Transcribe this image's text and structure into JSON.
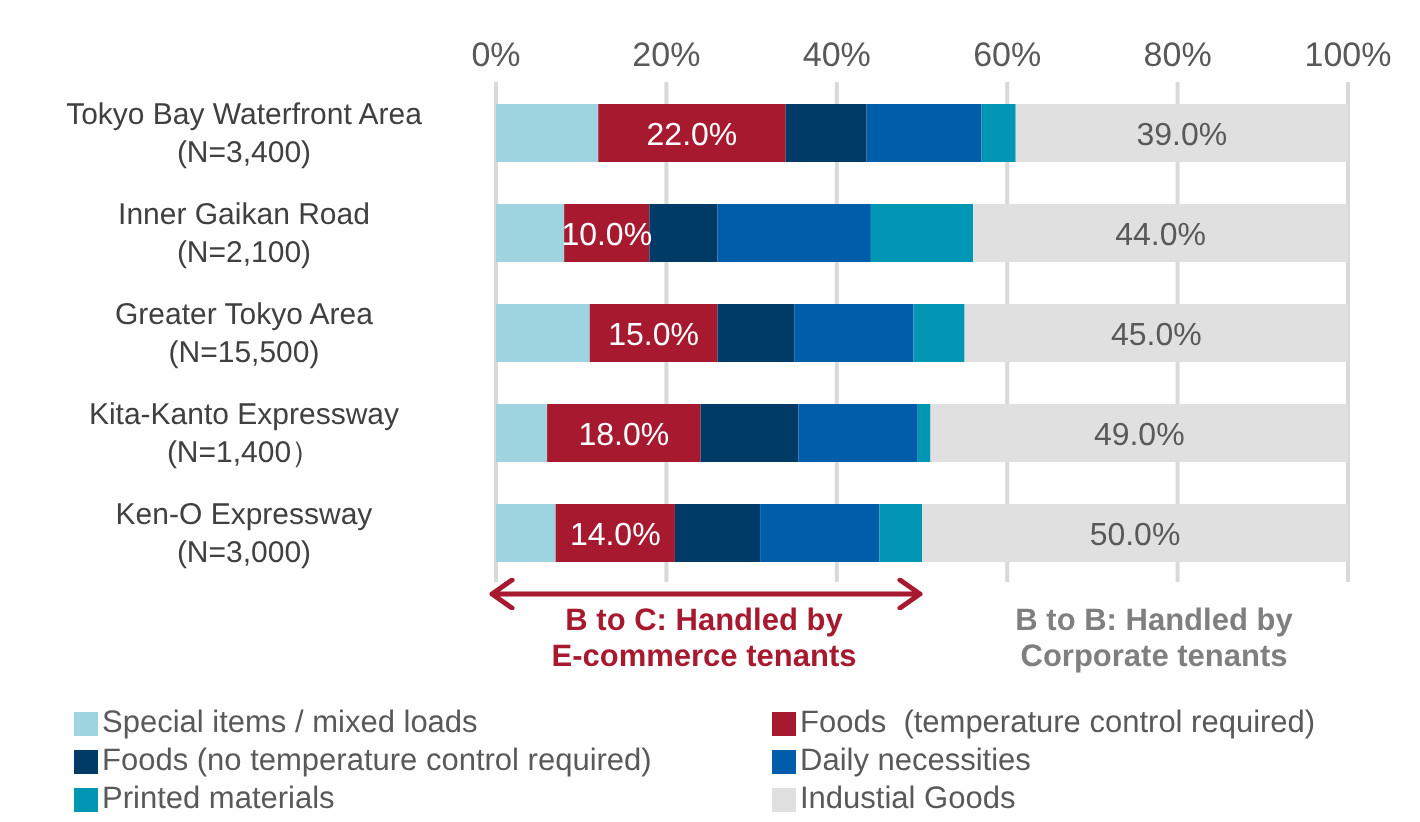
{
  "chart_data": {
    "type": "bar",
    "orientation": "horizontal",
    "stacked": true,
    "categories": [
      "Tokyo Bay Waterfront Area\n(N=3,400)",
      "Inner Gaikan Road\n(N=2,100)",
      "Greater Tokyo Area\n(N=15,500)",
      "Kita-Kanto Expressway\n(N=1,400）",
      "Ken-O Expressway\n(N=3,000)"
    ],
    "series": [
      {
        "name": "Special items / mixed loads",
        "color": "#9dd4df",
        "values": [
          12,
          8,
          11,
          6,
          7
        ]
      },
      {
        "name": "Foods  (temperature control required)",
        "color": "#a6192e",
        "values": [
          22,
          10,
          15,
          18,
          14
        ],
        "value_labels": [
          "22.0%",
          "10.0%",
          "15.0%",
          "18.0%",
          "14.0%"
        ]
      },
      {
        "name": "Foods (no temperature control required)",
        "color": "#003a66",
        "values": [
          9.5,
          8,
          9,
          11.5,
          10
        ]
      },
      {
        "name": "Daily necessities",
        "color": "#005daa",
        "values": [
          13.5,
          18,
          14,
          14,
          14
        ]
      },
      {
        "name": "Printed materials",
        "color": "#0096b4",
        "values": [
          4,
          12,
          6,
          1.5,
          5
        ]
      },
      {
        "name": "Industial Goods",
        "color": "#e0e0e0",
        "values": [
          39,
          44,
          45,
          49,
          50
        ],
        "value_labels": [
          "39.0%",
          "44.0%",
          "45.0%",
          "49.0%",
          "50.0%"
        ]
      }
    ],
    "xlim": [
      0,
      100
    ],
    "xticks": [
      {
        "value": 0,
        "label": "0%"
      },
      {
        "value": 20,
        "label": "20%"
      },
      {
        "value": 40,
        "label": "40%"
      },
      {
        "value": 60,
        "label": "60%"
      },
      {
        "value": 80,
        "label": "80%"
      },
      {
        "value": 100,
        "label": "100%"
      }
    ],
    "grid": "x",
    "legend": "bottom",
    "annotations": [
      "B to C: Handled by\nE-commerce tenants",
      "B to B: Handled by\nCorporate tenants"
    ]
  }
}
